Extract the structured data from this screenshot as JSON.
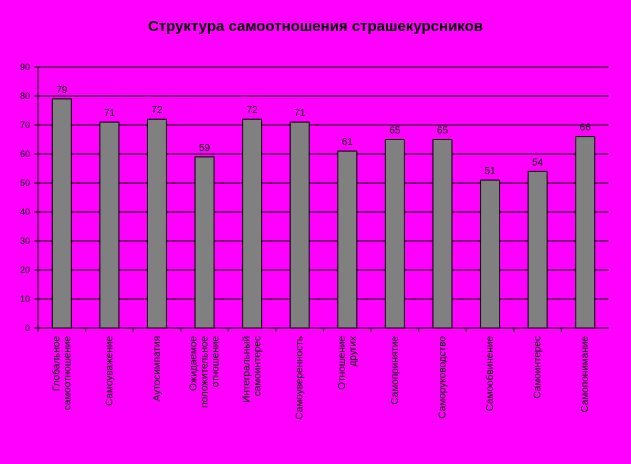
{
  "chart_data": {
    "type": "bar",
    "title": "Структура самоотношения страшекурсников",
    "xlabel": "",
    "ylabel": "",
    "ylim": [
      0,
      90
    ],
    "yticks": [
      0,
      10,
      20,
      30,
      40,
      50,
      60,
      70,
      80,
      90
    ],
    "grid": true,
    "legend": "none",
    "categories": [
      [
        "Глобальное",
        "самоотношение"
      ],
      [
        "Самоуважение"
      ],
      [
        "Аутосимпатия"
      ],
      [
        "Ожидаемое",
        "положительное",
        "отношение"
      ],
      [
        "Интегральный",
        "самоинтерес"
      ],
      [
        "Самоуверенность"
      ],
      [
        "Отношение",
        "других"
      ],
      [
        "Самопринятие"
      ],
      [
        "Саморуководство"
      ],
      [
        "Самообвинение"
      ],
      [
        "Самоинтерес"
      ],
      [
        "Самопонимание"
      ]
    ],
    "values": [
      79,
      71,
      72,
      59,
      72,
      71,
      61,
      65,
      65,
      51,
      54,
      66
    ],
    "colors": {
      "background": "#ff00ff",
      "bar": "#808080",
      "bar_border": "#000000",
      "grid": "#000000",
      "text": "#000000"
    }
  }
}
